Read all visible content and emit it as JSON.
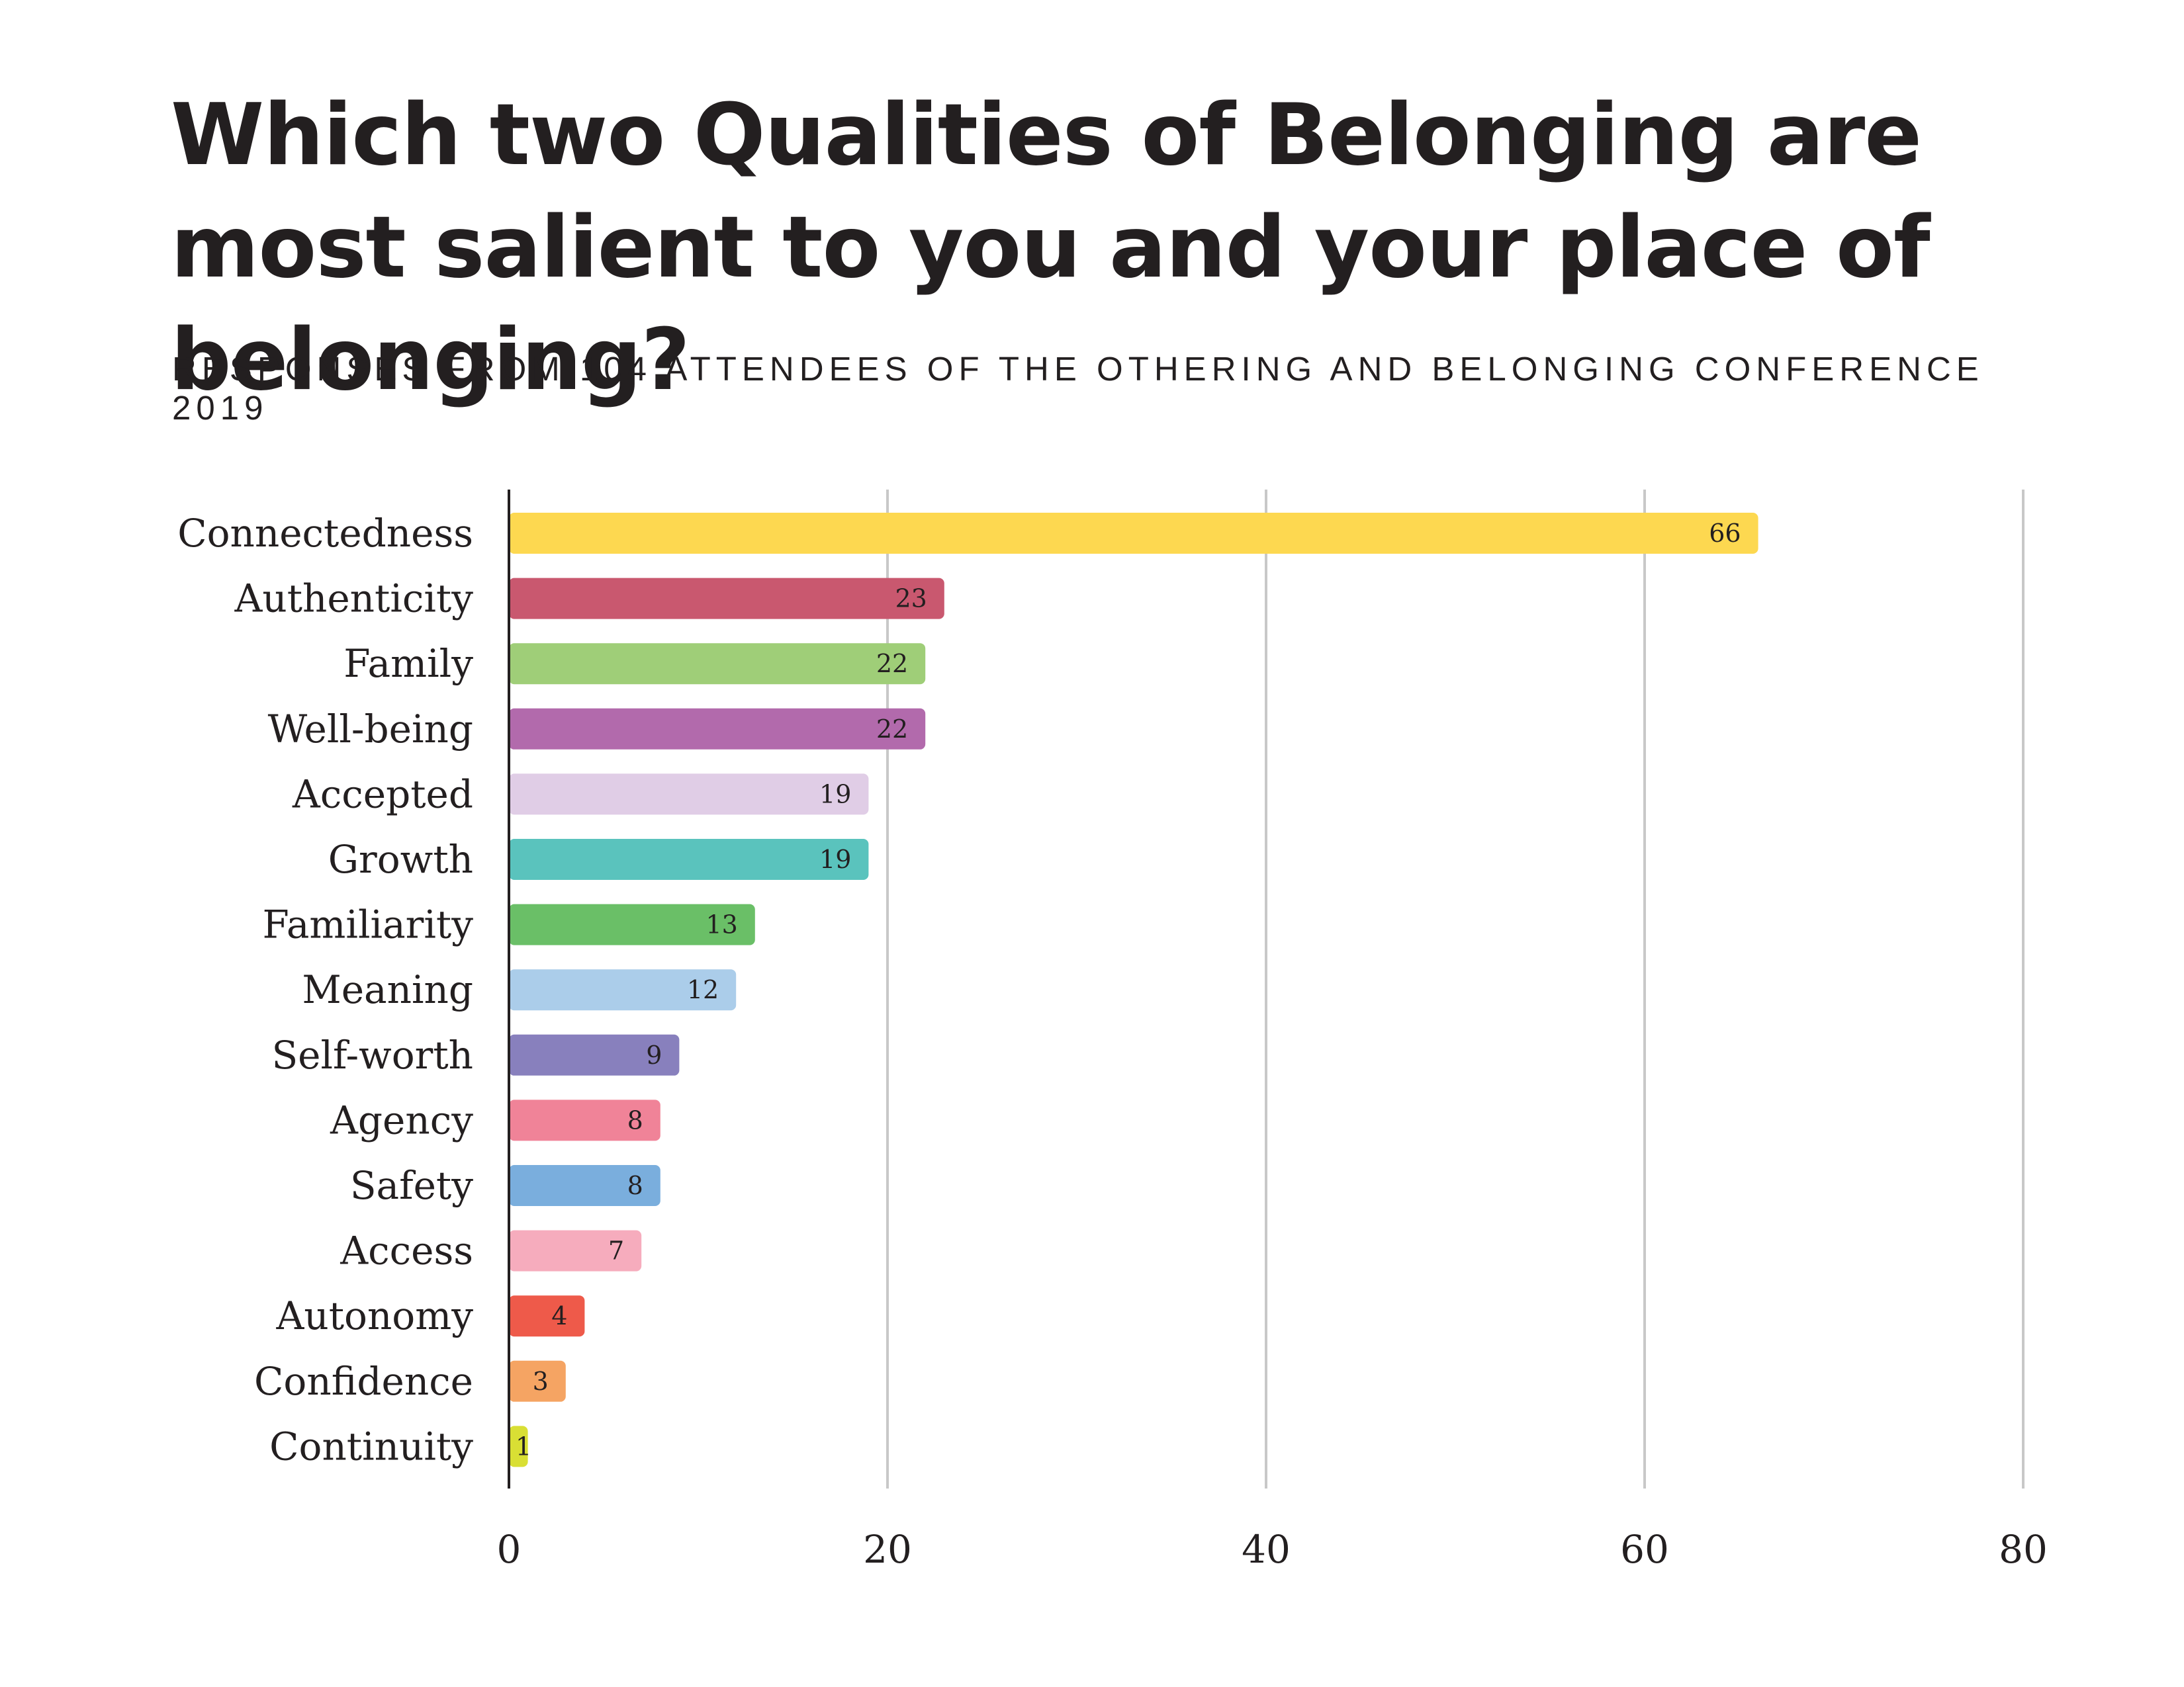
{
  "chart_data": {
    "type": "bar",
    "orientation": "horizontal",
    "title": "Which two Qualities of Belonging are most salient to you and your place of belonging?",
    "subtitle": "Responses from 104 attendees of the Othering and Belonging Conference 2019",
    "xlabel": "",
    "ylabel": "",
    "xlim": [
      0,
      80
    ],
    "x_ticks": [
      "0",
      "20",
      "40",
      "60",
      "80"
    ],
    "grid": "vertical",
    "legend": "none",
    "categories": [
      "Connectedness",
      "Authenticity",
      "Family",
      "Well-being",
      "Accepted",
      "Growth",
      "Familiarity",
      "Meaning",
      "Self-worth",
      "Agency",
      "Safety",
      "Access",
      "Autonomy",
      "Confidence",
      "Continuity"
    ],
    "values": [
      66,
      23,
      22,
      22,
      19,
      19,
      13,
      12,
      9,
      8,
      8,
      7,
      4,
      3,
      1
    ],
    "colors": [
      "#fdd850",
      "#c9586f",
      "#9fce78",
      "#b26aac",
      "#e0cde6",
      "#5ac3bd",
      "#6abf67",
      "#abcdea",
      "#8880bd",
      "#f08398",
      "#7aaedd",
      "#f6acbd",
      "#ee5a4a",
      "#f5a463",
      "#d9df34"
    ],
    "axis_color": "#231f20",
    "grid_color": "#c8c8c8"
  }
}
